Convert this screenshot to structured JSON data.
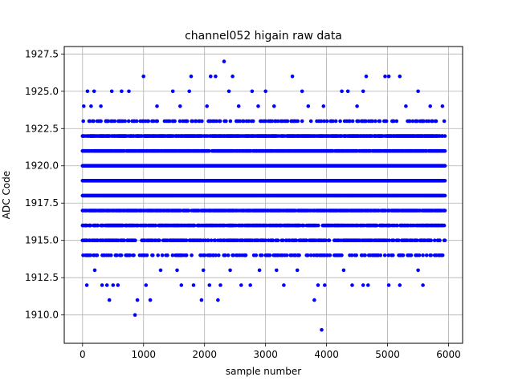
{
  "chart_data": {
    "type": "scatter",
    "title": "channel052 higain raw data",
    "xlabel": "sample number",
    "ylabel": "ADC Code",
    "xlim": [
      -300,
      6230
    ],
    "ylim": [
      1908.1,
      1928.0
    ],
    "x_ticks": [
      0,
      1000,
      2000,
      3000,
      4000,
      5000,
      6000
    ],
    "y_ticks": [
      1910.0,
      1912.5,
      1915.0,
      1917.5,
      1920.0,
      1922.5,
      1925.0,
      1927.5
    ],
    "x_tick_labels": [
      "0",
      "1000",
      "2000",
      "3000",
      "4000",
      "5000",
      "6000"
    ],
    "y_tick_labels": [
      "1910.0",
      "1912.5",
      "1915.0",
      "1917.5",
      "1920.0",
      "1922.5",
      "1925.0",
      "1927.5"
    ],
    "grid": true,
    "marker_color": "#0000ff",
    "series": [
      {
        "band_x_range": [
          0,
          5940
        ],
        "dense_levels": [
          {
            "y": 1915,
            "density": 0.55
          },
          {
            "y": 1916,
            "density": 0.75
          },
          {
            "y": 1917,
            "density": 0.85
          },
          {
            "y": 1918,
            "density": 1.0
          },
          {
            "y": 1919,
            "density": 1.0
          },
          {
            "y": 1920,
            "density": 1.0
          },
          {
            "y": 1921,
            "density": 0.9
          },
          {
            "y": 1922,
            "density": 0.8
          }
        ],
        "sparse_points": [
          {
            "x": 20,
            "y": 1924
          },
          {
            "x": 80,
            "y": 1925
          },
          {
            "x": 140,
            "y": 1924
          },
          {
            "x": 190,
            "y": 1925
          },
          {
            "x": 300,
            "y": 1924
          },
          {
            "x": 380,
            "y": 1923
          },
          {
            "x": 480,
            "y": 1925
          },
          {
            "x": 640,
            "y": 1925
          },
          {
            "x": 760,
            "y": 1925
          },
          {
            "x": 1000,
            "y": 1926
          },
          {
            "x": 1220,
            "y": 1924
          },
          {
            "x": 1480,
            "y": 1925
          },
          {
            "x": 1600,
            "y": 1924
          },
          {
            "x": 1750,
            "y": 1925
          },
          {
            "x": 1780,
            "y": 1926
          },
          {
            "x": 2040,
            "y": 1924
          },
          {
            "x": 2100,
            "y": 1926
          },
          {
            "x": 2180,
            "y": 1926
          },
          {
            "x": 2320,
            "y": 1927
          },
          {
            "x": 2400,
            "y": 1925
          },
          {
            "x": 2460,
            "y": 1926
          },
          {
            "x": 2560,
            "y": 1924
          },
          {
            "x": 2780,
            "y": 1925
          },
          {
            "x": 2880,
            "y": 1924
          },
          {
            "x": 3000,
            "y": 1925
          },
          {
            "x": 3140,
            "y": 1924
          },
          {
            "x": 3440,
            "y": 1926
          },
          {
            "x": 3600,
            "y": 1925
          },
          {
            "x": 3700,
            "y": 1924
          },
          {
            "x": 3950,
            "y": 1924
          },
          {
            "x": 4250,
            "y": 1925
          },
          {
            "x": 4350,
            "y": 1925
          },
          {
            "x": 4500,
            "y": 1924
          },
          {
            "x": 4600,
            "y": 1925
          },
          {
            "x": 4650,
            "y": 1926
          },
          {
            "x": 4960,
            "y": 1926
          },
          {
            "x": 5020,
            "y": 1926
          },
          {
            "x": 5200,
            "y": 1926
          },
          {
            "x": 5300,
            "y": 1924
          },
          {
            "x": 5500,
            "y": 1925
          },
          {
            "x": 5700,
            "y": 1924
          },
          {
            "x": 5900,
            "y": 1924
          },
          {
            "x": 10,
            "y": 1914
          },
          {
            "x": 70,
            "y": 1912
          },
          {
            "x": 200,
            "y": 1913
          },
          {
            "x": 320,
            "y": 1912
          },
          {
            "x": 400,
            "y": 1912
          },
          {
            "x": 440,
            "y": 1911
          },
          {
            "x": 500,
            "y": 1912
          },
          {
            "x": 580,
            "y": 1912
          },
          {
            "x": 860,
            "y": 1910
          },
          {
            "x": 900,
            "y": 1911
          },
          {
            "x": 1040,
            "y": 1912
          },
          {
            "x": 1110,
            "y": 1911
          },
          {
            "x": 1280,
            "y": 1913
          },
          {
            "x": 1550,
            "y": 1913
          },
          {
            "x": 1620,
            "y": 1912
          },
          {
            "x": 1820,
            "y": 1912
          },
          {
            "x": 1950,
            "y": 1911
          },
          {
            "x": 1980,
            "y": 1913
          },
          {
            "x": 2080,
            "y": 1912
          },
          {
            "x": 2220,
            "y": 1911
          },
          {
            "x": 2260,
            "y": 1912
          },
          {
            "x": 2420,
            "y": 1913
          },
          {
            "x": 2600,
            "y": 1912
          },
          {
            "x": 2750,
            "y": 1912
          },
          {
            "x": 2900,
            "y": 1913
          },
          {
            "x": 3180,
            "y": 1913
          },
          {
            "x": 3300,
            "y": 1912
          },
          {
            "x": 3520,
            "y": 1913
          },
          {
            "x": 3800,
            "y": 1911
          },
          {
            "x": 3860,
            "y": 1912
          },
          {
            "x": 3920,
            "y": 1909
          },
          {
            "x": 3970,
            "y": 1912
          },
          {
            "x": 4280,
            "y": 1913
          },
          {
            "x": 4420,
            "y": 1912
          },
          {
            "x": 4600,
            "y": 1912
          },
          {
            "x": 4680,
            "y": 1912
          },
          {
            "x": 5020,
            "y": 1912
          },
          {
            "x": 5200,
            "y": 1912
          },
          {
            "x": 5500,
            "y": 1913
          },
          {
            "x": 5580,
            "y": 1912
          }
        ],
        "level_1923_1914_density": 0.3
      }
    ]
  }
}
